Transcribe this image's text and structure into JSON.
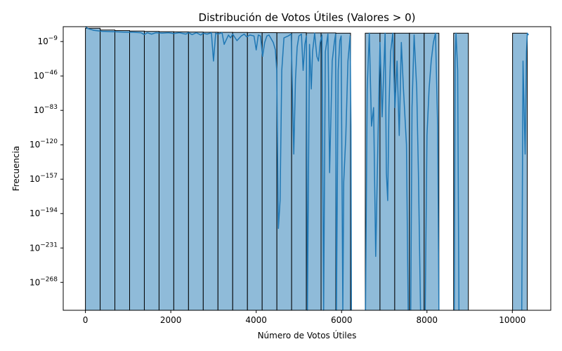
{
  "chart_data": {
    "type": "bar",
    "title": "Distribución de Votos Útiles (Valores > 0)",
    "xlabel": "Número de Votos Útiles",
    "ylabel": "Frecuencia",
    "xlim": [
      -520,
      10900
    ],
    "ylog_exponent_range": [
      -298,
      7
    ],
    "y_scale": "log",
    "grid": false,
    "bar_color": "#8fbbd9",
    "bar_edge_color": "#000000",
    "line_color": "#1f77b4",
    "x_ticks": [
      {
        "value": 0,
        "label": "0"
      },
      {
        "value": 2000,
        "label": "2000"
      },
      {
        "value": 4000,
        "label": "4000"
      },
      {
        "value": 6000,
        "label": "6000"
      },
      {
        "value": 8000,
        "label": "8000"
      },
      {
        "value": 10000,
        "label": "10000"
      }
    ],
    "y_ticks": [
      {
        "exp": -9,
        "base": "10",
        "sup": "−9"
      },
      {
        "exp": -46,
        "base": "10",
        "sup": "−46"
      },
      {
        "exp": -83,
        "base": "10",
        "sup": "−83"
      },
      {
        "exp": -120,
        "base": "10",
        "sup": "−120"
      },
      {
        "exp": -157,
        "base": "10",
        "sup": "−157"
      },
      {
        "exp": -194,
        "base": "10",
        "sup": "−194"
      },
      {
        "exp": -231,
        "base": "10",
        "sup": "−231"
      },
      {
        "exp": -268,
        "base": "10",
        "sup": "−268"
      }
    ],
    "bin_width": 345,
    "bins": [
      {
        "start": 0,
        "log10_count": 5.3
      },
      {
        "start": 345,
        "log10_count": 3.4
      },
      {
        "start": 690,
        "log10_count": 2.8
      },
      {
        "start": 1035,
        "log10_count": 2.3
      },
      {
        "start": 1380,
        "log10_count": 1.9
      },
      {
        "start": 1725,
        "log10_count": 1.6
      },
      {
        "start": 2070,
        "log10_count": 1.4
      },
      {
        "start": 2415,
        "log10_count": 1.2
      },
      {
        "start": 2760,
        "log10_count": 1.0
      },
      {
        "start": 3105,
        "log10_count": 0.9
      },
      {
        "start": 3450,
        "log10_count": 0.8
      },
      {
        "start": 3795,
        "log10_count": 0.7
      },
      {
        "start": 4140,
        "log10_count": 0.6
      },
      {
        "start": 4485,
        "log10_count": 0.5
      },
      {
        "start": 4830,
        "log10_count": 0.5
      },
      {
        "start": 5175,
        "log10_count": 0.3
      },
      {
        "start": 5520,
        "log10_count": 0.3
      },
      {
        "start": 5865,
        "log10_count": 0.0
      },
      {
        "start": 6555,
        "log10_count": 0.0
      },
      {
        "start": 6900,
        "log10_count": 0.0
      },
      {
        "start": 7245,
        "log10_count": 0.0
      },
      {
        "start": 7590,
        "log10_count": 0.0
      },
      {
        "start": 7935,
        "log10_count": 0.0
      },
      {
        "start": 8625,
        "log10_count": 0.0
      },
      {
        "start": 10005,
        "log10_count": 0.0
      }
    ],
    "kde_log10": [
      [
        0,
        7
      ],
      [
        60,
        5
      ],
      [
        200,
        3
      ],
      [
        400,
        2
      ],
      [
        700,
        1.5
      ],
      [
        900,
        1.2
      ],
      [
        1100,
        1
      ],
      [
        1300,
        0.5
      ],
      [
        1380,
        -1.5
      ],
      [
        1450,
        0.5
      ],
      [
        1550,
        -1
      ],
      [
        1650,
        0.5
      ],
      [
        1800,
        0
      ],
      [
        1950,
        0.5
      ],
      [
        2070,
        -0.5
      ],
      [
        2200,
        0.5
      ],
      [
        2350,
        -1
      ],
      [
        2415,
        0.5
      ],
      [
        2500,
        -1.5
      ],
      [
        2600,
        0.5
      ],
      [
        2700,
        -2
      ],
      [
        2760,
        0
      ],
      [
        2850,
        -1
      ],
      [
        2950,
        0.5
      ],
      [
        3000,
        -30
      ],
      [
        3050,
        0
      ],
      [
        3105,
        -1
      ],
      [
        3200,
        0.5
      ],
      [
        3250,
        -12
      ],
      [
        3350,
        -2
      ],
      [
        3400,
        -5
      ],
      [
        3450,
        -1
      ],
      [
        3550,
        -8
      ],
      [
        3650,
        -3
      ],
      [
        3720,
        -1
      ],
      [
        3780,
        -4
      ],
      [
        3850,
        -2
      ],
      [
        3950,
        -3
      ],
      [
        4000,
        -18
      ],
      [
        4050,
        -2
      ],
      [
        4100,
        -3
      ],
      [
        4150,
        -25
      ],
      [
        4200,
        -10
      ],
      [
        4250,
        -3
      ],
      [
        4300,
        -2
      ],
      [
        4400,
        -10
      ],
      [
        4450,
        -18
      ],
      [
        4480,
        -40
      ],
      [
        4520,
        -210
      ],
      [
        4560,
        -180
      ],
      [
        4600,
        -40
      ],
      [
        4650,
        -5
      ],
      [
        4750,
        -3
      ],
      [
        4820,
        -1
      ],
      [
        4880,
        -130
      ],
      [
        4920,
        -50
      ],
      [
        4960,
        -15
      ],
      [
        5000,
        -3
      ],
      [
        5060,
        -1
      ],
      [
        5100,
        -40
      ],
      [
        5140,
        -12
      ],
      [
        5175,
        -3
      ],
      [
        5200,
        -298
      ],
      [
        5250,
        -12
      ],
      [
        5290,
        -60
      ],
      [
        5320,
        -20
      ],
      [
        5370,
        0
      ],
      [
        5420,
        -25
      ],
      [
        5460,
        -30
      ],
      [
        5500,
        -10
      ],
      [
        5540,
        -2
      ],
      [
        5580,
        -298
      ],
      [
        5620,
        -20
      ],
      [
        5680,
        -1
      ],
      [
        5720,
        -150
      ],
      [
        5780,
        -30
      ],
      [
        5830,
        -10
      ],
      [
        5860,
        -1
      ],
      [
        5880,
        -298
      ],
      [
        5920,
        -40
      ],
      [
        5960,
        -8
      ],
      [
        5990,
        -3
      ],
      [
        6030,
        -298
      ],
      [
        6050,
        -160
      ],
      [
        6100,
        -110
      ],
      [
        6150,
        -30
      ],
      [
        6200,
        -3
      ],
      [
        6220,
        -100
      ],
      [
        6230,
        -298
      ]
    ],
    "kde_log10_2": [
      [
        6560,
        -298
      ],
      [
        6600,
        -60
      ],
      [
        6650,
        0
      ],
      [
        6700,
        -100
      ],
      [
        6750,
        -80
      ],
      [
        6800,
        -240
      ],
      [
        6850,
        -120
      ],
      [
        6900,
        -10
      ],
      [
        6950,
        -90
      ],
      [
        7020,
        0
      ],
      [
        7050,
        -150
      ],
      [
        7080,
        -180
      ],
      [
        7110,
        -80
      ],
      [
        7150,
        -20
      ],
      [
        7200,
        0
      ],
      [
        7250,
        -80
      ],
      [
        7300,
        -30
      ],
      [
        7350,
        -110
      ],
      [
        7400,
        -10
      ],
      [
        7450,
        -60
      ],
      [
        7520,
        -120
      ],
      [
        7560,
        -298
      ]
    ],
    "kde_log10_3": [
      [
        7620,
        -298
      ],
      [
        7650,
        -80
      ],
      [
        7700,
        -2
      ],
      [
        7760,
        -60
      ],
      [
        7800,
        -150
      ],
      [
        7850,
        -298
      ]
    ],
    "kde_log10_4": [
      [
        7960,
        -298
      ],
      [
        8000,
        -110
      ],
      [
        8050,
        -60
      ],
      [
        8100,
        -30
      ],
      [
        8150,
        -10
      ],
      [
        8200,
        0
      ],
      [
        8250,
        -100
      ],
      [
        8280,
        -298
      ]
    ],
    "kde_log10_5": [
      [
        8640,
        -298
      ],
      [
        8660,
        -30
      ],
      [
        8680,
        0
      ],
      [
        8720,
        -40
      ],
      [
        8750,
        -298
      ]
    ],
    "kde_log10_6": [
      [
        10220,
        -298
      ],
      [
        10250,
        -30
      ],
      [
        10300,
        -130
      ],
      [
        10330,
        -20
      ],
      [
        10350,
        0
      ],
      [
        10380,
        -2
      ]
    ]
  }
}
